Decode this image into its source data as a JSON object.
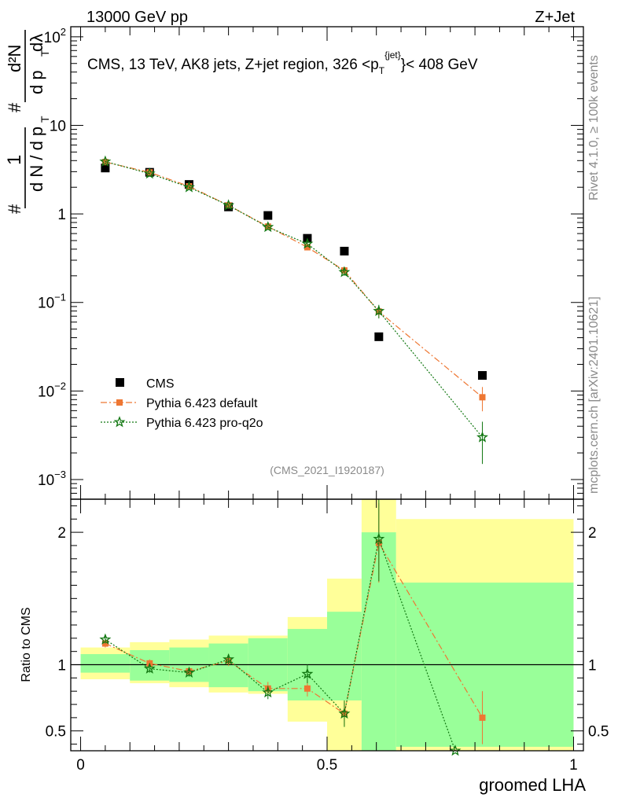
{
  "header": {
    "left": "13000 GeV pp",
    "right": "Z+Jet"
  },
  "side_text": {
    "rivet": "Rivet 4.1.0, ≥ 100k events",
    "mcplots": "mcplots.cern.ch [arXiv:2401.10621]"
  },
  "colors": {
    "cms": "#000000",
    "default": "#ee7733",
    "proq2o": "#117711",
    "band_inner": "#99ff99",
    "band_outer": "#ffff99"
  },
  "chart_data": [
    {
      "type": "scatter",
      "title": "CMS, 13 TeV, AK8 jets, Z+jet region, 326 <p_T^{jet}< 408 GeV",
      "title_parts": {
        "prefix": "CMS, 13 TeV, AK8 jets, Z+jet region, 326 <p",
        "sub": "T",
        "sup": "{jet}",
        "suffix": "}< 408 GeV"
      },
      "ylabel": "1/(dN/dp_T) d^2N/(dp_T dλ)",
      "ylabel_parts": {
        "one": "1",
        "den": "d N / d p",
        "numer": "d²N",
        "den2": "d p",
        "lam": "dλ",
        "T": "T",
        "hash": "#"
      },
      "yscale": "log",
      "ylim": [
        0.0006,
        130
      ],
      "yticks": [
        {
          "v": 0.001,
          "b": "10",
          "e": "−3"
        },
        {
          "v": 0.01,
          "b": "10",
          "e": "−2"
        },
        {
          "v": 0.1,
          "b": "10",
          "e": "−1"
        },
        {
          "v": 1,
          "b": "1",
          "e": ""
        },
        {
          "v": 10,
          "b": "10",
          "e": ""
        },
        {
          "v": 100,
          "b": "10",
          "e": "2"
        }
      ],
      "xlim": [
        -0.02,
        1.02
      ],
      "watermark": "(CMS_2021_I1920187)",
      "legend": [
        "CMS",
        "Pythia 6.423 default",
        "Pythia 6.423 pro-q2o"
      ],
      "series": [
        {
          "name": "CMS",
          "x": [
            0.05,
            0.14,
            0.22,
            0.3,
            0.38,
            0.46,
            0.535,
            0.605,
            0.815
          ],
          "y": [
            3.3,
            2.95,
            2.15,
            1.2,
            0.96,
            0.53,
            0.38,
            0.041,
            0.015
          ]
        },
        {
          "name": "Pythia 6.423 default",
          "x": [
            0.05,
            0.14,
            0.22,
            0.3,
            0.38,
            0.46,
            0.535,
            0.605,
            0.815
          ],
          "y": [
            3.85,
            2.95,
            2.05,
            1.25,
            0.72,
            0.42,
            0.23,
            0.079,
            0.0085
          ],
          "err": [
            0.1,
            0.08,
            0.06,
            0.04,
            0.03,
            0.03,
            0.02,
            0.012,
            0.0026
          ]
        },
        {
          "name": "Pythia 6.423 pro-q2o",
          "x": [
            0.05,
            0.14,
            0.22,
            0.3,
            0.38,
            0.46,
            0.535,
            0.605,
            0.815
          ],
          "y": [
            3.9,
            2.85,
            2.0,
            1.25,
            0.71,
            0.46,
            0.22,
            0.08,
            0.003
          ],
          "err": [
            0.1,
            0.08,
            0.06,
            0.04,
            0.03,
            0.03,
            0.02,
            0.014,
            0.0015
          ]
        }
      ]
    },
    {
      "type": "scatter",
      "ylabel": "Ratio to CMS",
      "xlabel": "groomed LHA",
      "ylim": [
        0.35,
        2.25
      ],
      "yticks": [
        0.5,
        1,
        2
      ],
      "ytick_labels": [
        "0.5",
        "1",
        "2"
      ],
      "xticks": [
        0,
        0.5,
        1
      ],
      "xtick_labels": [
        "0",
        "0.5",
        "1"
      ],
      "reference_line": 1,
      "bands": [
        {
          "x0": 0.0,
          "x1": 0.1,
          "in_lo": 0.94,
          "in_hi": 1.08,
          "out_lo": 0.89,
          "out_hi": 1.13
        },
        {
          "x0": 0.1,
          "x1": 0.18,
          "in_lo": 0.88,
          "in_hi": 1.11,
          "out_lo": 0.86,
          "out_hi": 1.17
        },
        {
          "x0": 0.18,
          "x1": 0.26,
          "in_lo": 0.87,
          "in_hi": 1.13,
          "out_lo": 0.83,
          "out_hi": 1.19
        },
        {
          "x0": 0.26,
          "x1": 0.34,
          "in_lo": 0.83,
          "in_hi": 1.16,
          "out_lo": 0.79,
          "out_hi": 1.22
        },
        {
          "x0": 0.34,
          "x1": 0.42,
          "in_lo": 0.8,
          "in_hi": 1.2,
          "out_lo": 0.78,
          "out_hi": 1.22
        },
        {
          "x0": 0.42,
          "x1": 0.5,
          "in_lo": 0.73,
          "in_hi": 1.27,
          "out_lo": 0.57,
          "out_hi": 1.36
        },
        {
          "x0": 0.5,
          "x1": 0.57,
          "in_lo": 0.73,
          "in_hi": 1.4,
          "out_lo": 0.35,
          "out_hi": 1.65
        },
        {
          "x0": 0.57,
          "x1": 0.64,
          "in_lo": 0.35,
          "in_hi": 2.0,
          "out_lo": 0.35,
          "out_hi": 2.25
        },
        {
          "x0": 0.64,
          "x1": 1.0,
          "in_lo": 0.38,
          "in_hi": 1.62,
          "out_lo": 0.35,
          "out_hi": 2.1
        }
      ],
      "series": [
        {
          "name": "Pythia 6.423 default",
          "x": [
            0.05,
            0.14,
            0.22,
            0.3,
            0.38,
            0.46,
            0.535,
            0.605,
            0.815
          ],
          "y": [
            1.16,
            1.01,
            0.95,
            1.03,
            0.82,
            0.82,
            0.63,
            1.92,
            0.6
          ],
          "err": [
            0.03,
            0.03,
            0.03,
            0.04,
            0.05,
            0.06,
            0.09,
            0.3,
            0.2
          ]
        },
        {
          "name": "Pythia 6.423 pro-q2o",
          "x": [
            0.05,
            0.14,
            0.22,
            0.3,
            0.38,
            0.46,
            0.535,
            0.605,
            0.76
          ],
          "y": [
            1.19,
            0.97,
            0.94,
            1.04,
            0.79,
            0.93,
            0.63,
            1.95,
            0.35
          ],
          "err": [
            0.03,
            0.03,
            0.03,
            0.04,
            0.05,
            0.07,
            0.1,
            0.32,
            0
          ]
        }
      ]
    }
  ]
}
